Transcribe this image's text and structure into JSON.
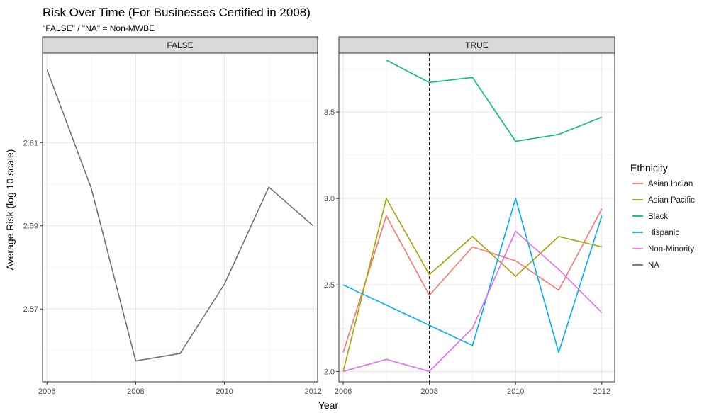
{
  "chart_data": {
    "type": "line",
    "title": "Risk Over Time (For Businesses Certified in 2008)",
    "subtitle": "\"FALSE\" / \"NA\" = Non-MWBE",
    "xlabel": "Year",
    "ylabel": "Average Risk (log 10 scale)",
    "grid": true,
    "legend": {
      "title": "Ethnicity",
      "position": "right"
    },
    "panels": [
      {
        "strip": "FALSE",
        "xlim": [
          2005.9,
          2012.1
        ],
        "ylim": [
          2.5525,
          2.6315
        ],
        "x_ticks": [
          2006,
          2008,
          2010,
          2012
        ],
        "y_ticks": [
          2.57,
          2.59,
          2.61
        ],
        "y_tick_labels": [
          "2.57",
          "2.59",
          "2.61"
        ],
        "vline": null,
        "series": [
          {
            "name": "NA",
            "color": "#737373",
            "x": [
              2006,
              2007,
              2008,
              2009,
              2010,
              2011,
              2012
            ],
            "y": [
              2.6275,
              2.599,
              2.5575,
              2.5593,
              2.576,
              2.5993,
              2.59
            ]
          }
        ]
      },
      {
        "strip": "TRUE",
        "xlim": [
          2005.9,
          2012.3
        ],
        "ylim": [
          1.94,
          3.84
        ],
        "x_ticks": [
          2006,
          2008,
          2010,
          2012
        ],
        "y_ticks": [
          2.0,
          2.5,
          3.0,
          3.5
        ],
        "y_tick_labels": [
          "2.0",
          "2.5",
          "3.0",
          "3.5"
        ],
        "vline": 2008,
        "series": [
          {
            "name": "Asian Indian",
            "color": "#F8766D",
            "x": [
              2006,
              2007,
              2008,
              2009,
              2010,
              2011,
              2012
            ],
            "y": [
              2.11,
              2.9,
              2.44,
              2.72,
              2.64,
              2.47,
              2.94
            ]
          },
          {
            "name": "Asian Pacific",
            "color": "#A3A500",
            "x": [
              2006,
              2007,
              2008,
              2009,
              2010,
              2011,
              2012
            ],
            "y": [
              2.0,
              3.0,
              2.56,
              2.78,
              2.55,
              2.78,
              2.72
            ]
          },
          {
            "name": "Black",
            "color": "#00BF7D",
            "x": [
              2007,
              2008,
              2009,
              2010,
              2011,
              2012
            ],
            "y": [
              3.8,
              3.67,
              3.7,
              3.33,
              3.37,
              3.47
            ]
          },
          {
            "name": "Hispanic",
            "color": "#00B0F6",
            "x": [
              2006,
              2009,
              2010,
              2011,
              2012
            ],
            "y": [
              2.5,
              2.15,
              3.0,
              2.11,
              2.9
            ]
          },
          {
            "name": "Non-Minority",
            "color": "#E76BF3",
            "x": [
              2006,
              2007,
              2008,
              2009,
              2010,
              2011,
              2012
            ],
            "y": [
              2.0,
              2.07,
              2.0,
              2.25,
              2.81,
              2.59,
              2.34
            ]
          }
        ]
      }
    ],
    "legend_entries": [
      {
        "name": "Asian Indian",
        "color": "#F8766D"
      },
      {
        "name": "Asian Pacific",
        "color": "#A3A500"
      },
      {
        "name": "Black",
        "color": "#00BF7D"
      },
      {
        "name": "Hispanic",
        "color": "#00B0F6"
      },
      {
        "name": "Non-Minority",
        "color": "#E76BF3"
      },
      {
        "name": "NA",
        "color": "#737373"
      }
    ]
  }
}
